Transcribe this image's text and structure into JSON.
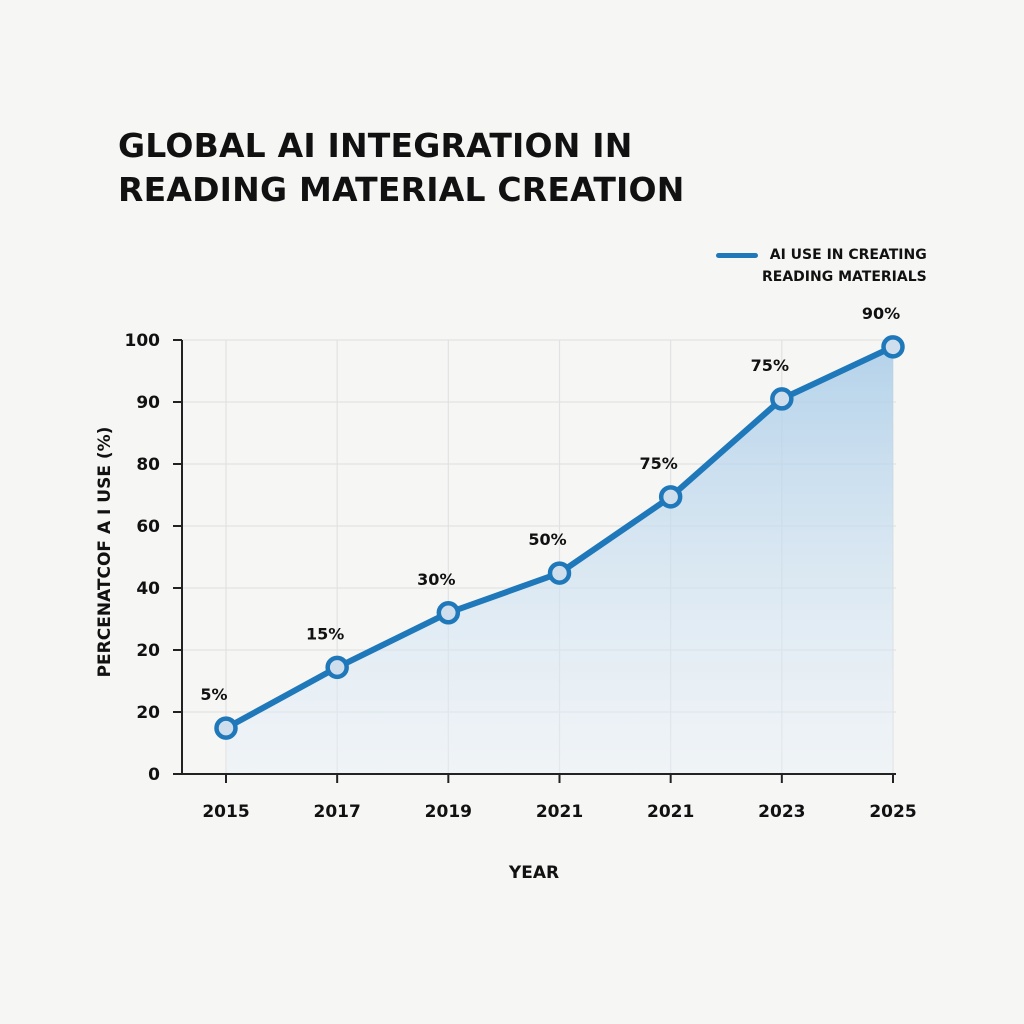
{
  "chart_data": {
    "type": "line",
    "title": "GLOBAL AI INTEGRATION IN READING MATERIAL CREATION",
    "title_lines": [
      "GLOBAL AI INTEGRATION IN",
      "READING MATERIAL CREATION"
    ],
    "xlabel": "YEAR",
    "ylabel": "PERCENATCOF A I USE  (%)",
    "categories": [
      "2015",
      "2017",
      "2019",
      "2021",
      "2021",
      "2023",
      "2025"
    ],
    "y_tick_labels": [
      "0",
      "20",
      "20",
      "40",
      "60",
      "80",
      "90",
      "100"
    ],
    "series": [
      {
        "name": "AI USE IN CREATING READING MATERIALS",
        "legend_lines": [
          "AI USE IN CREATING",
          "READING MATERIALS"
        ],
        "color": "#1f78b9",
        "data_labels": [
          "5%",
          "15%",
          "30%",
          "50%",
          "75%",
          "75%",
          "90%"
        ],
        "values": [
          5,
          15,
          30,
          50,
          75,
          75,
          90
        ],
        "plotted_tick_position": [
          0.74,
          1.72,
          2.6,
          3.24,
          4.47,
          6.05,
          6.89
        ]
      }
    ],
    "area_fill": true,
    "grid": true,
    "legend_position": "top-right"
  }
}
